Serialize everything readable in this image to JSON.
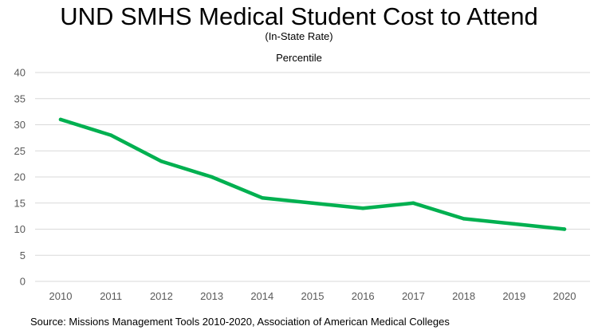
{
  "chart_data": {
    "type": "line",
    "title": "UND SMHS Medical Student Cost to Attend",
    "subtitle": "(In-State Rate)",
    "ylabel": "Percentile",
    "xlabel": "",
    "x": [
      "2010",
      "2011",
      "2012",
      "2013",
      "2014",
      "2015",
      "2016",
      "2017",
      "2018",
      "2019",
      "2020"
    ],
    "series": [
      {
        "values": [
          31,
          28,
          23,
          20,
          16,
          15,
          14,
          15,
          12,
          11,
          10
        ],
        "color": "#00B050"
      }
    ],
    "ylim": [
      0,
      40
    ],
    "yticks": [
      "0",
      "5",
      "10",
      "15",
      "20",
      "25",
      "30",
      "35",
      "40"
    ],
    "grid": true,
    "legend": "none"
  },
  "source_note": "Source: Missions Management Tools 2010-2020, Association of American Medical Colleges",
  "colors": {
    "gridline": "#D9D9D9",
    "tick_text": "#595959",
    "series": "#00B050"
  }
}
